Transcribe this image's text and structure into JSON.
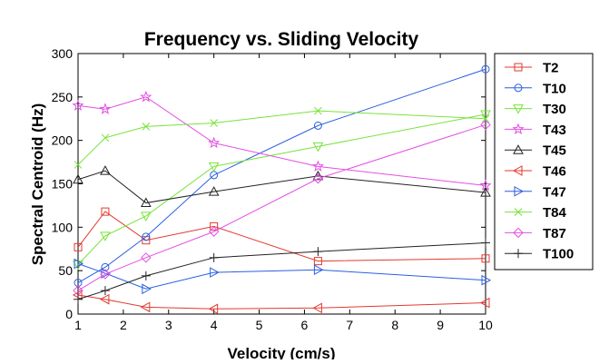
{
  "chart_data": {
    "type": "line",
    "title": "Frequency vs. Sliding Velocity",
    "xlabel": "Velocity (cm/s)",
    "ylabel": "Spectral Centroid (Hz)",
    "xlim": [
      1,
      10
    ],
    "ylim": [
      0,
      300
    ],
    "xticks": [
      1,
      2,
      3,
      4,
      5,
      6,
      7,
      8,
      9,
      10
    ],
    "yticks": [
      0,
      50,
      100,
      150,
      200,
      250,
      300
    ],
    "x": [
      1,
      1.6,
      2.5,
      4,
      6.3,
      10
    ],
    "grid": false,
    "legend_position": "right",
    "series": [
      {
        "name": "T2",
        "color": "#e03a2f",
        "marker": "square",
        "values": [
          77,
          118,
          85,
          101,
          61,
          64
        ]
      },
      {
        "name": "T10",
        "color": "#2b5fe0",
        "marker": "circle",
        "values": [
          36,
          54,
          89,
          160,
          217,
          282
        ]
      },
      {
        "name": "T30",
        "color": "#78e33a",
        "marker": "triangle-down",
        "values": [
          57,
          90,
          113,
          170,
          193,
          230
        ]
      },
      {
        "name": "T43",
        "color": "#e44fe4",
        "marker": "star",
        "values": [
          240,
          236,
          250,
          197,
          170,
          148
        ]
      },
      {
        "name": "T45",
        "color": "#222222",
        "marker": "triangle-up",
        "values": [
          155,
          165,
          128,
          141,
          159,
          140
        ]
      },
      {
        "name": "T46",
        "color": "#e03a2f",
        "marker": "triangle-left",
        "values": [
          22,
          17,
          8,
          6,
          7,
          13
        ]
      },
      {
        "name": "T47",
        "color": "#2b5fe0",
        "marker": "triangle-right",
        "values": [
          58,
          47,
          29,
          48,
          51,
          39
        ]
      },
      {
        "name": "T84",
        "color": "#78e33a",
        "marker": "x",
        "values": [
          172,
          203,
          216,
          220,
          234,
          225
        ]
      },
      {
        "name": "T87",
        "color": "#e44fe4",
        "marker": "diamond",
        "values": [
          27,
          46,
          65,
          95,
          156,
          218
        ]
      },
      {
        "name": "T100",
        "color": "#222222",
        "marker": "plus",
        "values": [
          17,
          27,
          44,
          65,
          72,
          82
        ]
      }
    ]
  }
}
